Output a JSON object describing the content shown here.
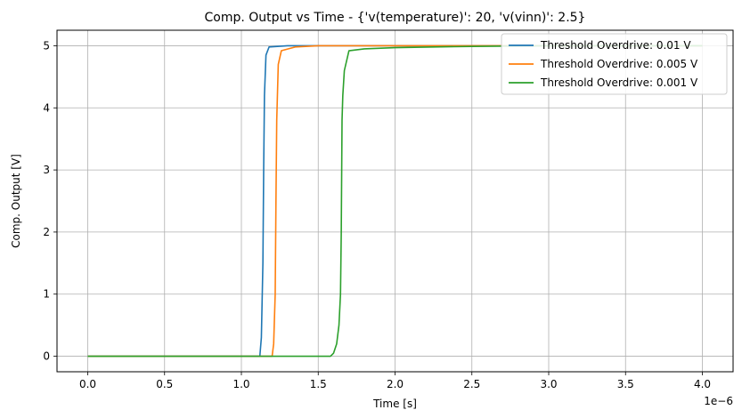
{
  "chart_data": {
    "type": "line",
    "title": "Comp. Output vs Time - {'v(temperature)': 20, 'v(vinn)': 2.5}",
    "xlabel": "Time [s]",
    "ylabel": "Comp. Output [V]",
    "x_offset_label": "1e−6",
    "xlim": [
      -0.2,
      4.2
    ],
    "ylim": [
      -0.25,
      5.25
    ],
    "x_ticks": [
      0.0,
      0.5,
      1.0,
      1.5,
      2.0,
      2.5,
      3.0,
      3.5,
      4.0
    ],
    "x_tick_labels": [
      "0.0",
      "0.5",
      "1.0",
      "1.5",
      "2.0",
      "2.5",
      "3.0",
      "3.5",
      "4.0"
    ],
    "y_ticks": [
      0,
      1,
      2,
      3,
      4,
      5
    ],
    "y_tick_labels": [
      "0",
      "1",
      "2",
      "3",
      "4",
      "5"
    ],
    "grid": true,
    "legend_position": "top-right",
    "series": [
      {
        "name": "Threshold Overdrive: 0.01 V",
        "color": "#1f77b4",
        "points": [
          [
            0.0,
            0.0
          ],
          [
            1.12,
            0.0
          ],
          [
            1.13,
            0.3
          ],
          [
            1.14,
            1.5
          ],
          [
            1.145,
            3.0
          ],
          [
            1.15,
            4.2
          ],
          [
            1.16,
            4.85
          ],
          [
            1.18,
            4.98
          ],
          [
            1.3,
            5.0
          ],
          [
            4.0,
            5.0
          ]
        ]
      },
      {
        "name": "Threshold Overdrive: 0.005 V",
        "color": "#ff7f0e",
        "points": [
          [
            0.0,
            0.0
          ],
          [
            1.2,
            0.0
          ],
          [
            1.21,
            0.2
          ],
          [
            1.22,
            1.0
          ],
          [
            1.225,
            2.5
          ],
          [
            1.23,
            3.8
          ],
          [
            1.24,
            4.7
          ],
          [
            1.26,
            4.92
          ],
          [
            1.35,
            4.98
          ],
          [
            1.5,
            5.0
          ],
          [
            4.0,
            5.0
          ]
        ]
      },
      {
        "name": "Threshold Overdrive: 0.001 V",
        "color": "#2ca02c",
        "points": [
          [
            0.0,
            0.0
          ],
          [
            1.58,
            0.0
          ],
          [
            1.6,
            0.05
          ],
          [
            1.62,
            0.2
          ],
          [
            1.635,
            0.5
          ],
          [
            1.645,
            1.0
          ],
          [
            1.65,
            2.0
          ],
          [
            1.655,
            3.8
          ],
          [
            1.66,
            4.2
          ],
          [
            1.67,
            4.6
          ],
          [
            1.7,
            4.92
          ],
          [
            1.8,
            4.95
          ],
          [
            2.0,
            4.97
          ],
          [
            2.5,
            4.99
          ],
          [
            3.0,
            5.0
          ],
          [
            4.0,
            5.0
          ]
        ]
      }
    ]
  }
}
